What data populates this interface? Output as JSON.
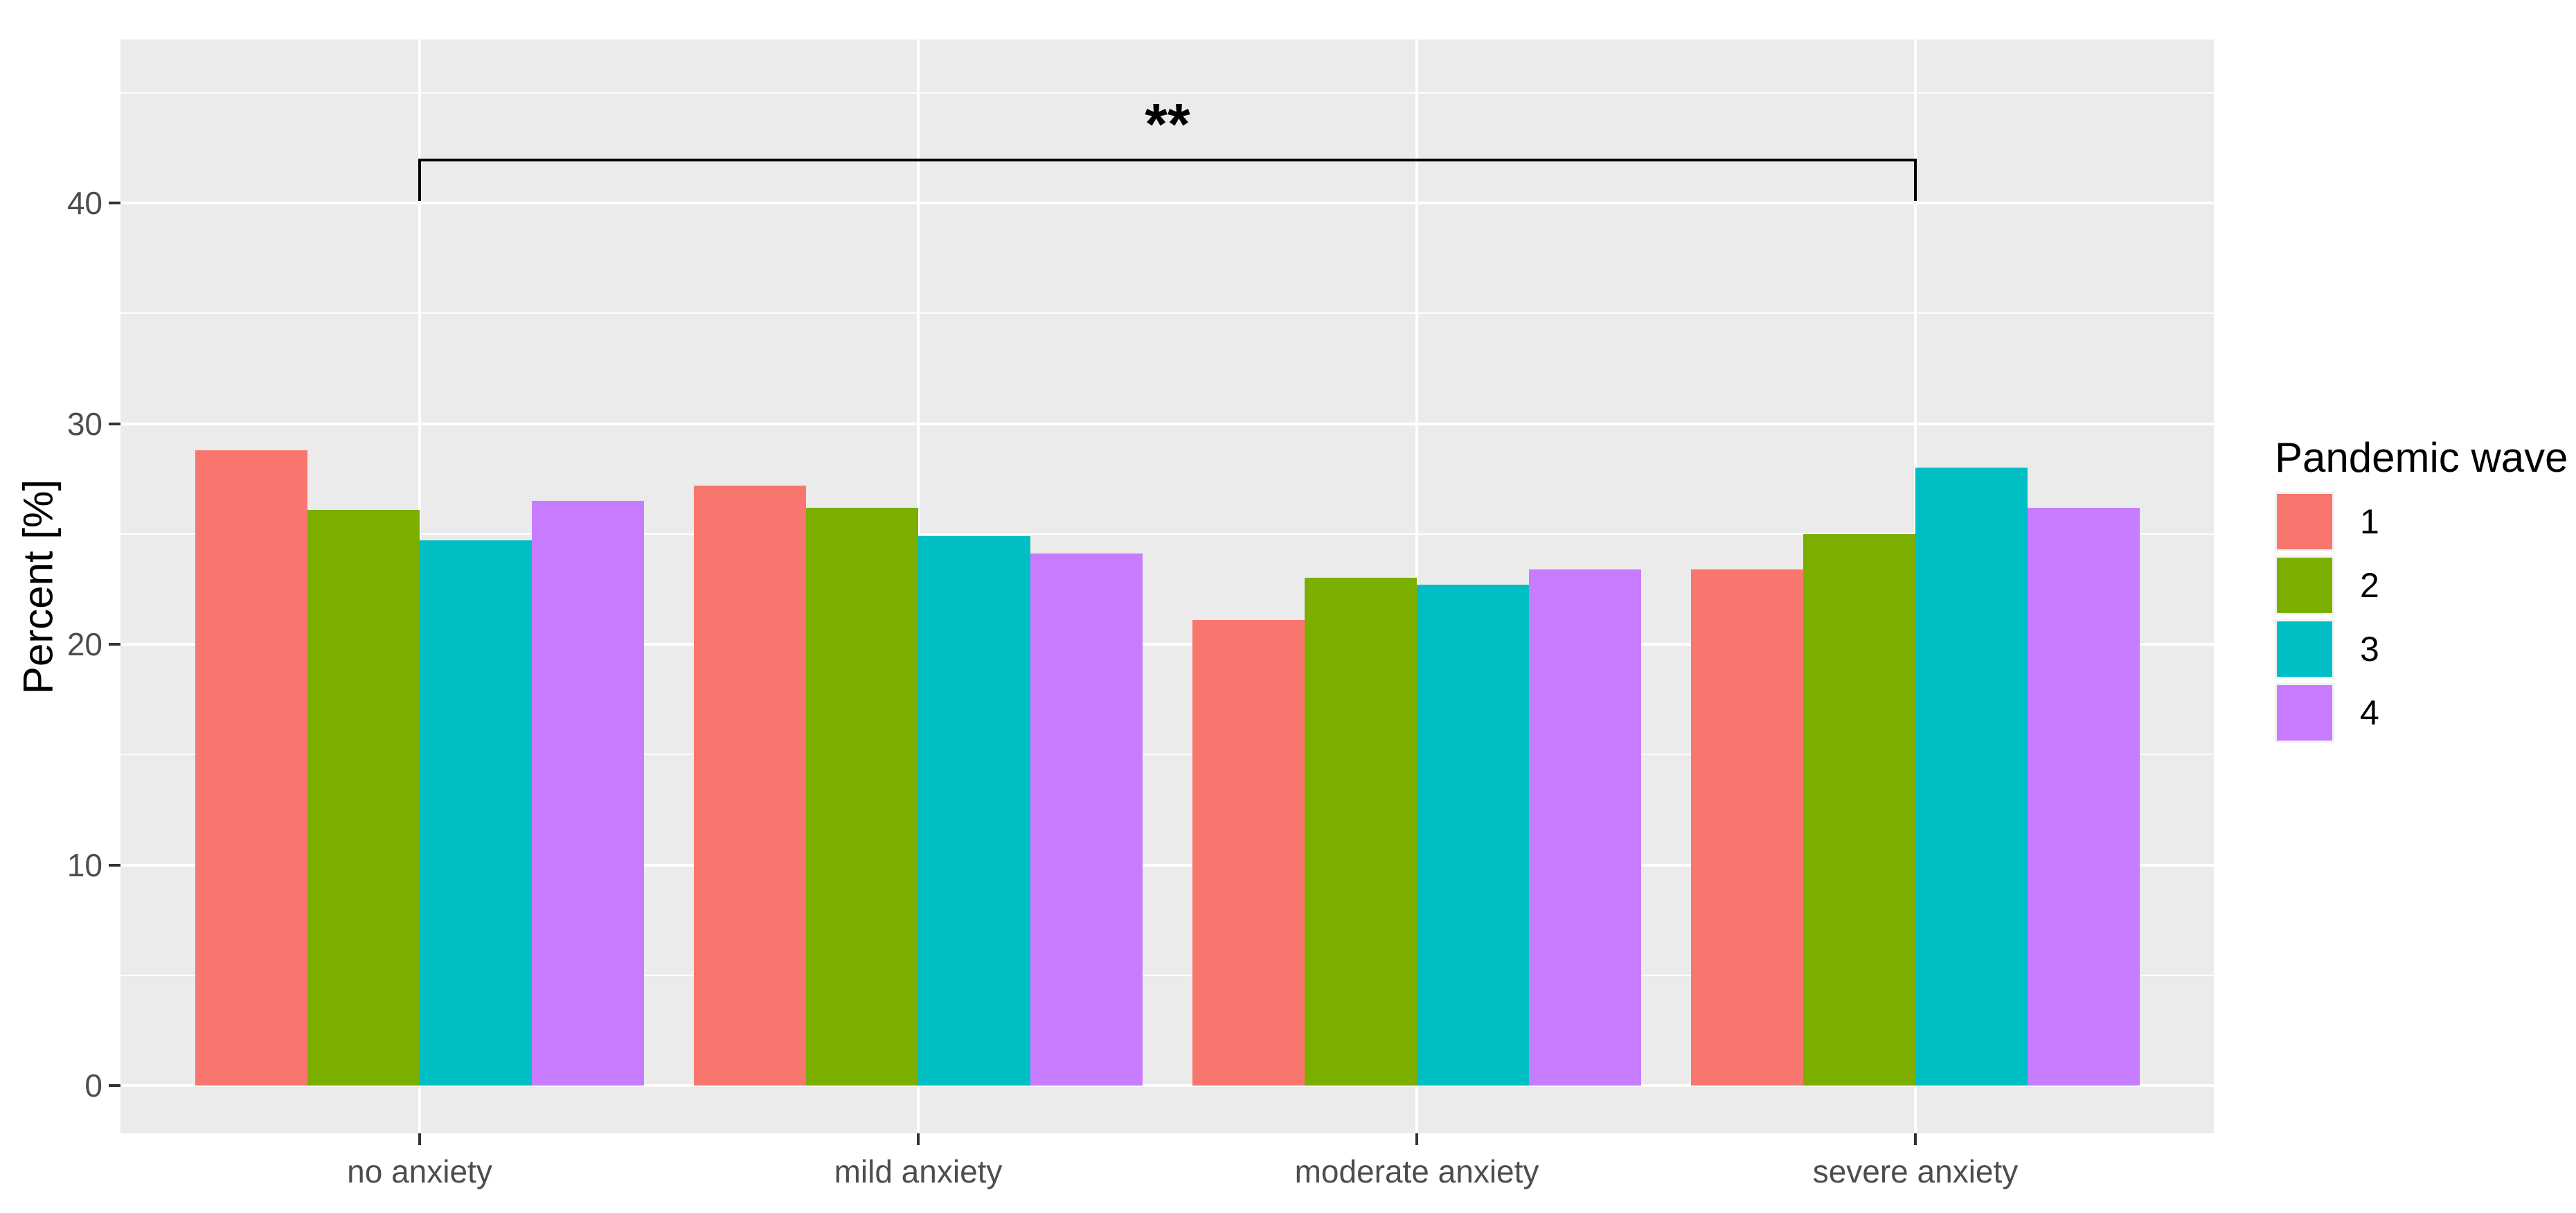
{
  "chart_data": {
    "type": "bar",
    "subtype": "grouped-dodged",
    "title": "",
    "xlabel": "",
    "ylabel": "Percent [%]",
    "categories": [
      "no anxiety",
      "mild anxiety",
      "moderate anxiety",
      "severe anxiety"
    ],
    "series": [
      {
        "name": "1",
        "color": "#F8766D",
        "values": [
          28.8,
          27.2,
          21.1,
          23.4
        ]
      },
      {
        "name": "2",
        "color": "#7CAE00",
        "values": [
          26.1,
          26.2,
          23.0,
          25.0
        ]
      },
      {
        "name": "3",
        "color": "#00BFC4",
        "values": [
          24.7,
          24.9,
          22.7,
          28.0
        ]
      },
      {
        "name": "4",
        "color": "#C77CFF",
        "values": [
          26.5,
          24.1,
          23.4,
          26.2
        ]
      }
    ],
    "ylim": [
      -2.2,
      47.4
    ],
    "yticks": [
      0,
      10,
      20,
      30,
      40
    ],
    "yticks_minor": [
      5,
      15,
      25,
      35,
      45
    ],
    "grid": "on",
    "legend": {
      "title": "Pandemic wave",
      "position": "right",
      "entries": [
        "1",
        "2",
        "3",
        "4"
      ]
    },
    "annotation": {
      "text": "**",
      "bracket_from_category": "no anxiety",
      "bracket_to_category": "severe anxiety",
      "bracket_y_value": 42.0,
      "bracket_tip_y_value": 40.1
    }
  },
  "colors": {
    "page_background": "#FFFFFF",
    "panel_background": "#EBEBEB",
    "gridline": "#FFFFFF",
    "axis_text": "#4D4D4D",
    "tick_mark": "#333333",
    "title_text": "#000000",
    "annotation_line": "#000000"
  }
}
